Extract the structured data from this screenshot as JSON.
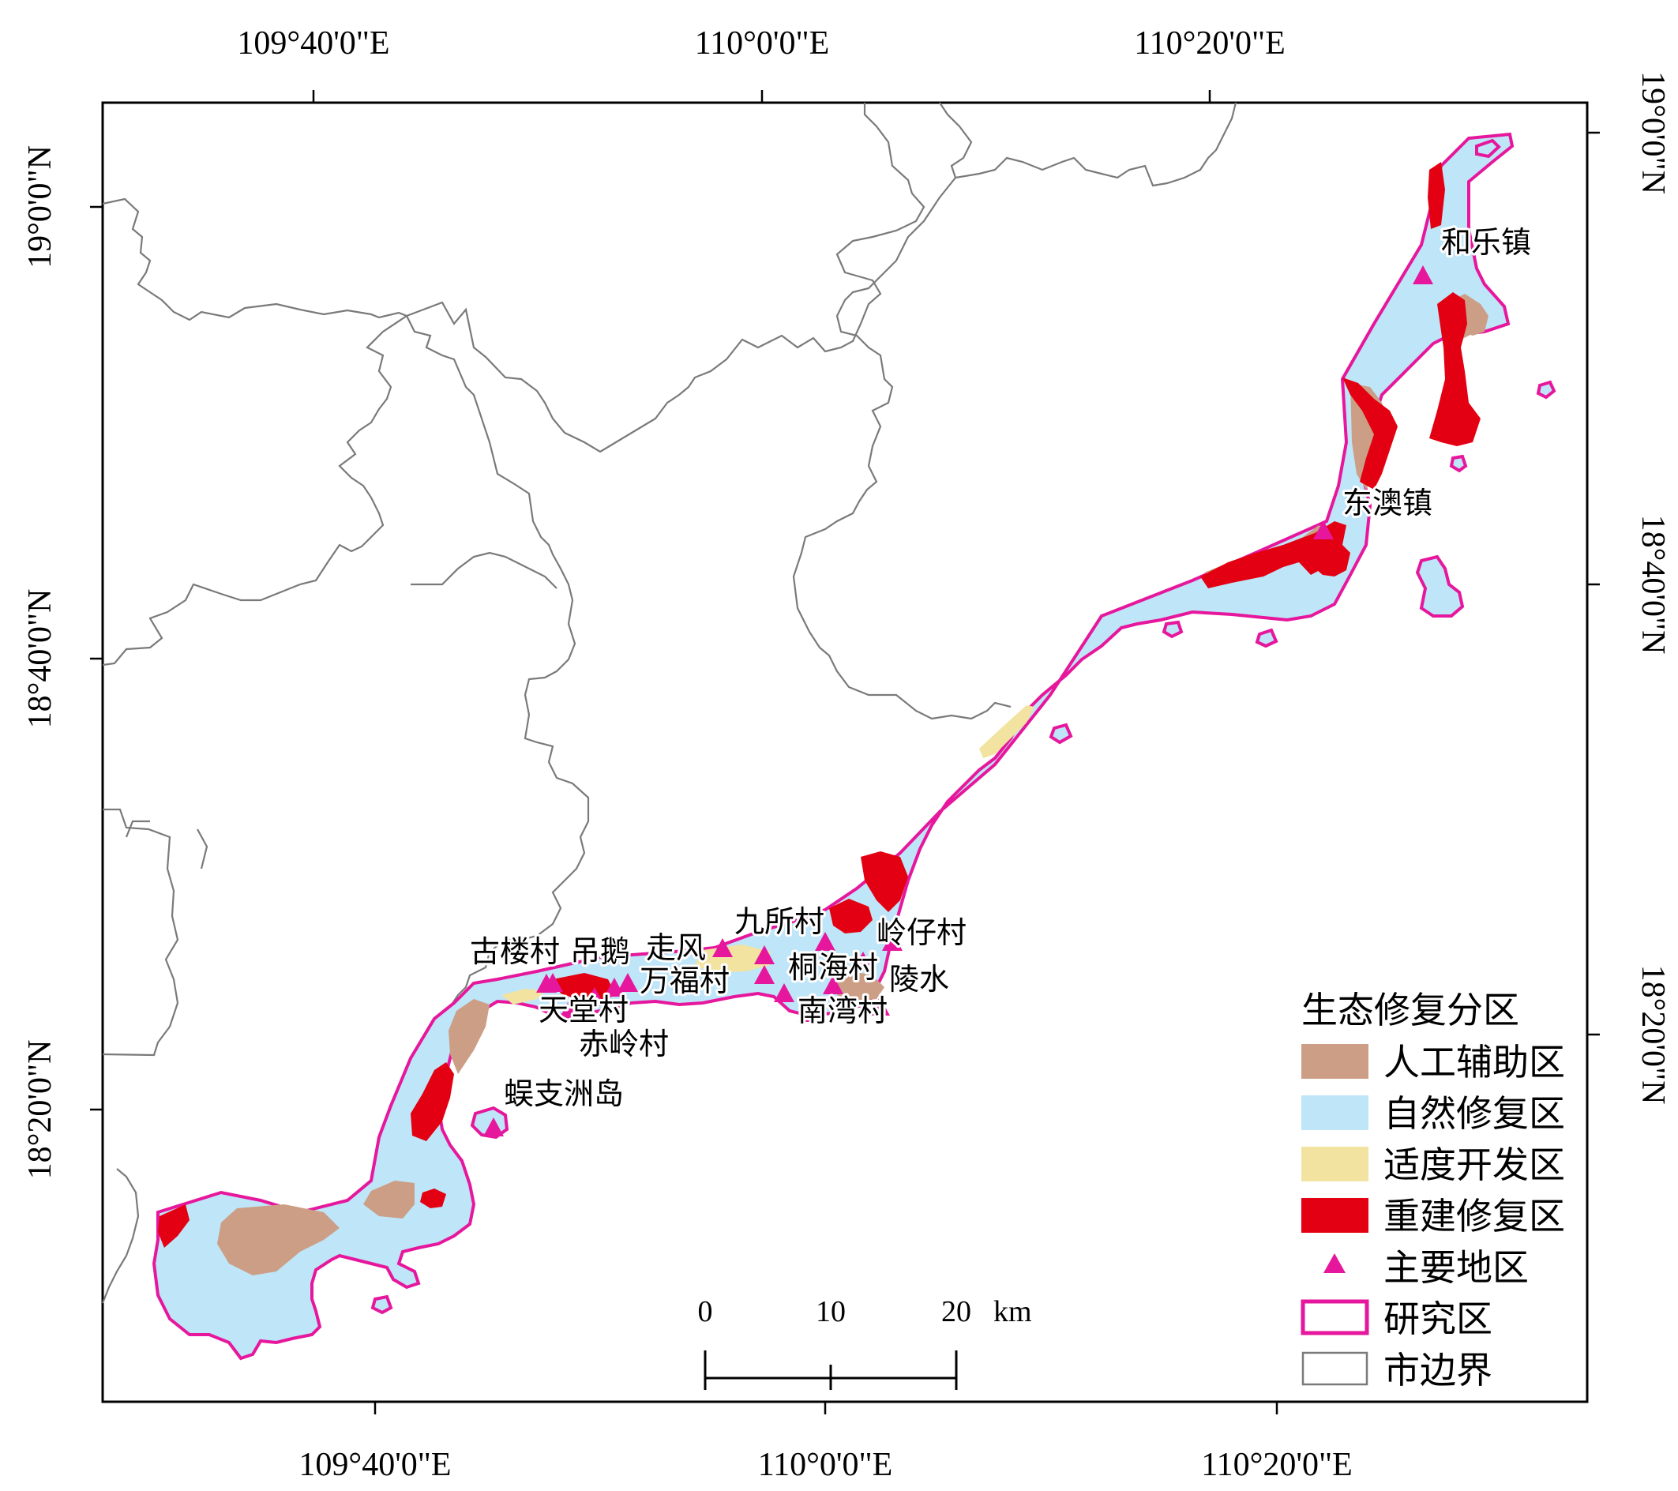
{
  "graticule": {
    "top_lon": [
      "109°40'0\"E",
      "110°0'0\"E",
      "110°20'0\"E"
    ],
    "bottom_lon": [
      "109°40'0\"E",
      "110°0'0\"E",
      "110°20'0\"E"
    ],
    "left_lat": [
      "19°0'0\"N",
      "18°40'0\"N",
      "18°20'0\"N"
    ],
    "right_lat": [
      "19°0'0\"N",
      "18°40'0\"N",
      "18°20'0\"N"
    ]
  },
  "places": [
    {
      "name": "和乐镇"
    },
    {
      "name": "东澳镇"
    },
    {
      "name": "九所村"
    },
    {
      "name": "岭仔村"
    },
    {
      "name": "桐海村"
    },
    {
      "name": "陵水"
    },
    {
      "name": "南湾村"
    },
    {
      "name": "走风"
    },
    {
      "name": "吊鹅"
    },
    {
      "name": "古楼村"
    },
    {
      "name": "万福村"
    },
    {
      "name": "天堂村"
    },
    {
      "name": "赤岭村"
    },
    {
      "name": "蜈支洲岛"
    }
  ],
  "legend": {
    "title": "生态修复分区",
    "items": [
      {
        "label": "人工辅助区",
        "color": "#cc9e85"
      },
      {
        "label": "自然修复区",
        "color": "#bfe5f8"
      },
      {
        "label": "适度开发区",
        "color": "#f2e3a0"
      },
      {
        "label": "重建修复区",
        "color": "#e30012"
      },
      {
        "label": "主要地区",
        "color": "#e6179c"
      },
      {
        "label": "研究区",
        "color": "#e6179c"
      },
      {
        "label": "市边界",
        "color": "#7a7a7a"
      }
    ]
  },
  "scale_bar": {
    "ticks": [
      "0",
      "10",
      "20"
    ],
    "unit": "km"
  }
}
